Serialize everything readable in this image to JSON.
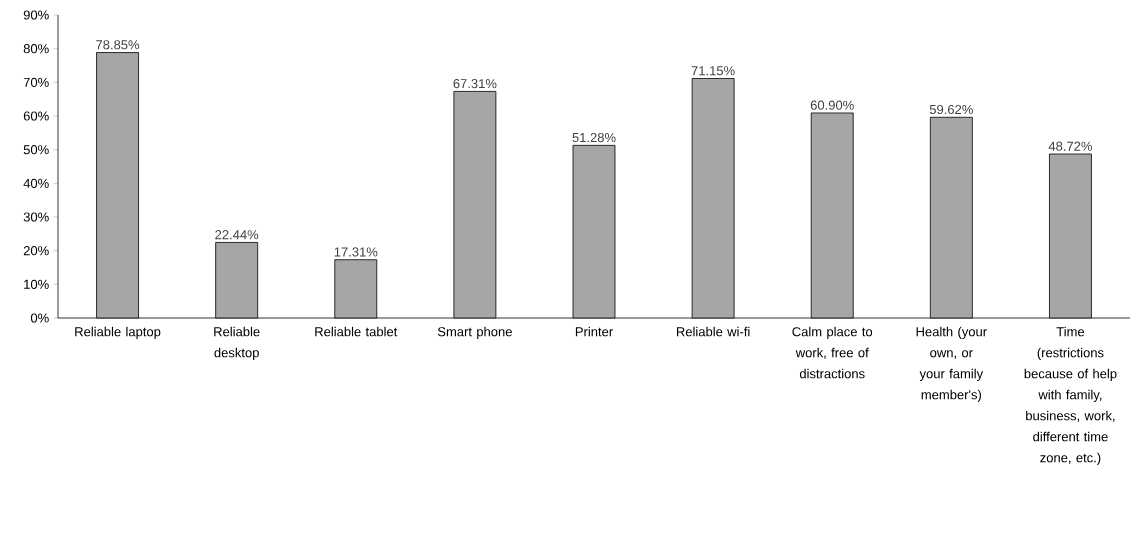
{
  "chart_data": {
    "type": "bar",
    "categories": [
      "Reliable laptop",
      "Reliable desktop",
      "Reliable tablet",
      "Smart phone",
      "Printer",
      "Reliable wi-fi",
      "Calm place to work, free of distractions",
      "Health (your own, or your family member's)",
      "Time (restrictions because of help with family, business, work, different time zone, etc.)"
    ],
    "values": [
      78.85,
      22.44,
      17.31,
      67.31,
      51.28,
      71.15,
      60.9,
      59.62,
      48.72
    ],
    "value_labels": [
      "78.85%",
      "22.44%",
      "17.31%",
      "67.31%",
      "51.28%",
      "71.15%",
      "60.90%",
      "59.62%",
      "48.72%"
    ],
    "color": "#a6a6a6",
    "ylim": [
      0,
      90
    ],
    "yticks": [
      {
        "value": 0,
        "label": "0%"
      },
      {
        "value": 10,
        "label": "10%"
      },
      {
        "value": 20,
        "label": "20%"
      },
      {
        "value": 30,
        "label": "30%"
      },
      {
        "value": 40,
        "label": "40%"
      },
      {
        "value": 50,
        "label": "50%"
      },
      {
        "value": 60,
        "label": "60%"
      },
      {
        "value": 70,
        "label": "70%"
      },
      {
        "value": 80,
        "label": "80%"
      },
      {
        "value": 90,
        "label": "90%"
      }
    ],
    "grid": false
  }
}
